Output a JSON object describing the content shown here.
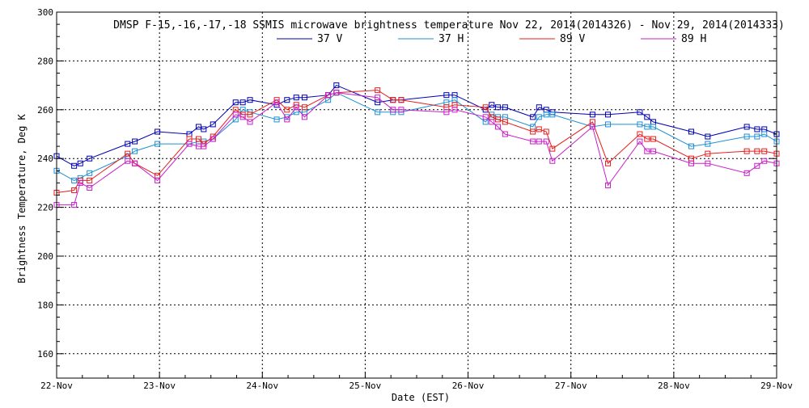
{
  "chart_data": {
    "type": "line",
    "title": "DMSP F-15,-16,-17,-18 SSMIS microwave brightness temperature Nov 22, 2014(2014326) - Nov 29, 2014(2014333)",
    "xlabel": "Date (EST)",
    "ylabel": "Brightness Temperature, Deg K",
    "xlim": [
      0,
      7
    ],
    "ylim": [
      150,
      300
    ],
    "x_ticks": [
      {
        "value": 0,
        "label": "22-Nov"
      },
      {
        "value": 1,
        "label": "23-Nov"
      },
      {
        "value": 2,
        "label": "24-Nov"
      },
      {
        "value": 3,
        "label": "25-Nov"
      },
      {
        "value": 4,
        "label": "26-Nov"
      },
      {
        "value": 5,
        "label": "27-Nov"
      },
      {
        "value": 6,
        "label": "28-Nov"
      },
      {
        "value": 7,
        "label": "29-Nov"
      }
    ],
    "y_ticks": [
      160,
      180,
      200,
      220,
      240,
      260,
      280,
      300
    ],
    "grid": true,
    "legend_position": "top-center",
    "series": [
      {
        "name": "37 V",
        "color": "#0000b4",
        "points": [
          [
            0.0,
            241
          ],
          [
            0.17,
            237
          ],
          [
            0.23,
            238
          ],
          [
            0.32,
            240
          ],
          [
            0.69,
            246
          ],
          [
            0.76,
            247
          ],
          [
            0.98,
            251
          ],
          [
            1.29,
            250
          ],
          [
            1.38,
            253
          ],
          [
            1.43,
            252
          ],
          [
            1.52,
            254
          ],
          [
            1.74,
            263
          ],
          [
            1.81,
            263
          ],
          [
            1.88,
            264
          ],
          [
            2.14,
            262
          ],
          [
            2.24,
            264
          ],
          [
            2.33,
            265
          ],
          [
            2.41,
            265
          ],
          [
            2.64,
            266
          ],
          [
            2.72,
            270
          ],
          [
            3.12,
            263
          ],
          [
            3.27,
            264
          ],
          [
            3.35,
            264
          ],
          [
            3.79,
            266
          ],
          [
            3.87,
            266
          ],
          [
            4.17,
            260
          ],
          [
            4.23,
            262
          ],
          [
            4.29,
            261
          ],
          [
            4.36,
            261
          ],
          [
            4.63,
            257
          ],
          [
            4.69,
            261
          ],
          [
            4.76,
            260
          ],
          [
            4.82,
            259
          ],
          [
            5.21,
            258
          ],
          [
            5.36,
            258
          ],
          [
            5.67,
            259
          ],
          [
            5.74,
            257
          ],
          [
            5.8,
            255
          ],
          [
            6.17,
            251
          ],
          [
            6.33,
            249
          ],
          [
            6.71,
            253
          ],
          [
            6.81,
            252
          ],
          [
            6.88,
            252
          ],
          [
            7.0,
            250
          ]
        ]
      },
      {
        "name": "37 H",
        "color": "#1e90d2",
        "points": [
          [
            0.0,
            235
          ],
          [
            0.17,
            231
          ],
          [
            0.23,
            232
          ],
          [
            0.32,
            234
          ],
          [
            0.69,
            241
          ],
          [
            0.76,
            243
          ],
          [
            0.98,
            246
          ],
          [
            1.29,
            246
          ],
          [
            1.38,
            247
          ],
          [
            1.43,
            247
          ],
          [
            1.52,
            248
          ],
          [
            1.74,
            256
          ],
          [
            1.81,
            260
          ],
          [
            1.88,
            259
          ],
          [
            2.14,
            256
          ],
          [
            2.24,
            257
          ],
          [
            2.33,
            259
          ],
          [
            2.41,
            259
          ],
          [
            2.64,
            264
          ],
          [
            2.72,
            267
          ],
          [
            3.12,
            259
          ],
          [
            3.27,
            259
          ],
          [
            3.35,
            259
          ],
          [
            3.79,
            263
          ],
          [
            3.87,
            264
          ],
          [
            4.17,
            255
          ],
          [
            4.23,
            258
          ],
          [
            4.29,
            257
          ],
          [
            4.36,
            257
          ],
          [
            4.63,
            253
          ],
          [
            4.69,
            257
          ],
          [
            4.76,
            258
          ],
          [
            4.82,
            258
          ],
          [
            5.21,
            253
          ],
          [
            5.36,
            254
          ],
          [
            5.67,
            254
          ],
          [
            5.74,
            253
          ],
          [
            5.8,
            253
          ],
          [
            6.17,
            245
          ],
          [
            6.33,
            246
          ],
          [
            6.71,
            249
          ],
          [
            6.81,
            249
          ],
          [
            6.88,
            250
          ],
          [
            7.0,
            247
          ]
        ]
      },
      {
        "name": "89 V",
        "color": "#e61e1e",
        "points": [
          [
            0.0,
            226
          ],
          [
            0.17,
            227
          ],
          [
            0.23,
            231
          ],
          [
            0.32,
            231
          ],
          [
            0.69,
            242
          ],
          [
            0.76,
            238
          ],
          [
            0.98,
            233
          ],
          [
            1.29,
            248
          ],
          [
            1.38,
            248
          ],
          [
            1.43,
            246
          ],
          [
            1.52,
            249
          ],
          [
            1.74,
            260
          ],
          [
            1.81,
            258
          ],
          [
            1.88,
            258
          ],
          [
            2.14,
            264
          ],
          [
            2.24,
            260
          ],
          [
            2.33,
            262
          ],
          [
            2.41,
            261
          ],
          [
            2.64,
            266
          ],
          [
            2.72,
            267
          ],
          [
            3.12,
            268
          ],
          [
            3.27,
            264
          ],
          [
            3.35,
            264
          ],
          [
            3.79,
            261
          ],
          [
            3.87,
            262
          ],
          [
            4.17,
            261
          ],
          [
            4.23,
            257
          ],
          [
            4.29,
            256
          ],
          [
            4.36,
            255
          ],
          [
            4.63,
            251
          ],
          [
            4.69,
            252
          ],
          [
            4.76,
            251
          ],
          [
            4.82,
            244
          ],
          [
            5.21,
            255
          ],
          [
            5.36,
            238
          ],
          [
            5.67,
            250
          ],
          [
            5.74,
            248
          ],
          [
            5.8,
            248
          ],
          [
            6.17,
            240
          ],
          [
            6.33,
            242
          ],
          [
            6.71,
            243
          ],
          [
            6.81,
            243
          ],
          [
            6.88,
            243
          ],
          [
            7.0,
            242
          ]
        ]
      },
      {
        "name": "89 H",
        "color": "#c81ec8",
        "points": [
          [
            0.0,
            221
          ],
          [
            0.17,
            221
          ],
          [
            0.23,
            230
          ],
          [
            0.32,
            228
          ],
          [
            0.69,
            239
          ],
          [
            0.76,
            238
          ],
          [
            0.98,
            231
          ],
          [
            1.29,
            246
          ],
          [
            1.38,
            245
          ],
          [
            1.43,
            245
          ],
          [
            1.52,
            248
          ],
          [
            1.74,
            258
          ],
          [
            1.81,
            257
          ],
          [
            1.88,
            255
          ],
          [
            2.14,
            263
          ],
          [
            2.24,
            256
          ],
          [
            2.33,
            261
          ],
          [
            2.41,
            257
          ],
          [
            2.64,
            266
          ],
          [
            2.72,
            267
          ],
          [
            3.12,
            265
          ],
          [
            3.27,
            260
          ],
          [
            3.35,
            260
          ],
          [
            3.79,
            259
          ],
          [
            3.87,
            260
          ],
          [
            4.17,
            257
          ],
          [
            4.23,
            255
          ],
          [
            4.29,
            253
          ],
          [
            4.36,
            250
          ],
          [
            4.63,
            247
          ],
          [
            4.69,
            247
          ],
          [
            4.76,
            247
          ],
          [
            4.82,
            239
          ],
          [
            5.21,
            253
          ],
          [
            5.36,
            229
          ],
          [
            5.67,
            247
          ],
          [
            5.74,
            243
          ],
          [
            5.8,
            243
          ],
          [
            6.17,
            238
          ],
          [
            6.33,
            238
          ],
          [
            6.71,
            234
          ],
          [
            6.81,
            237
          ],
          [
            6.88,
            239
          ],
          [
            7.0,
            238
          ]
        ]
      }
    ]
  }
}
